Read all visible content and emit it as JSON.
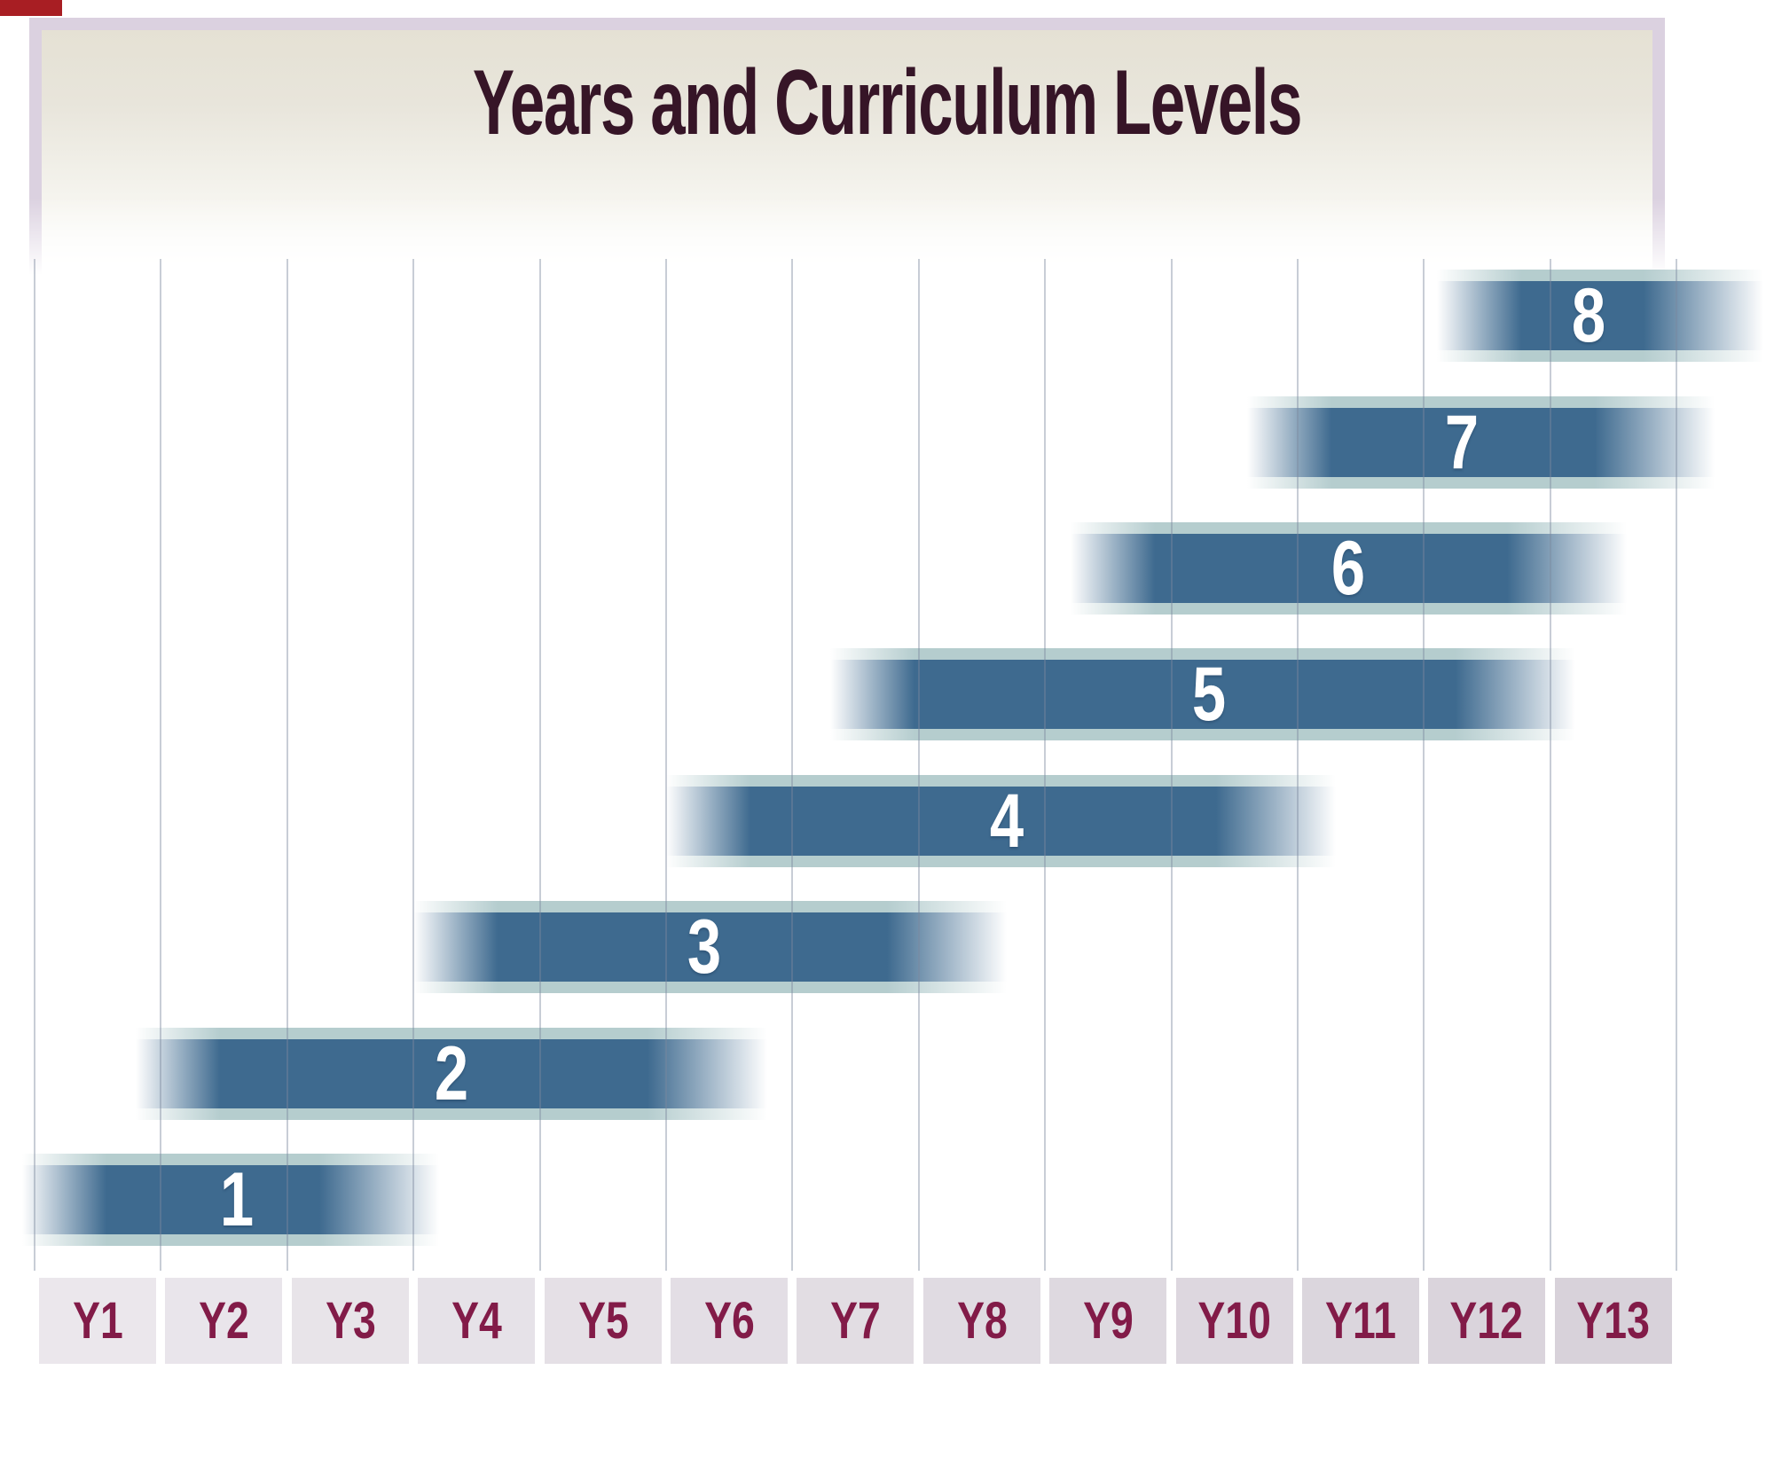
{
  "header": {
    "title": "Years and Curriculum Levels",
    "title_color": "#361527",
    "frame_color": "#dbd1e0",
    "gradient_top_color": "#e5e1d4"
  },
  "artifact": {
    "corner_mark_color": "#a81e23"
  },
  "chart_data": {
    "type": "gantt",
    "title": "Years and Curriculum Levels",
    "x_categories": [
      "Y1",
      "Y2",
      "Y3",
      "Y4",
      "Y5",
      "Y6",
      "Y7",
      "Y8",
      "Y9",
      "Y10",
      "Y11",
      "Y12",
      "Y13"
    ],
    "legend_position": "none",
    "grid": "vertical-only",
    "bar_style": "horizontal bars with soft faded ends",
    "levels": [
      {
        "level": "1",
        "year_start": 0.9,
        "year_end": 4.2,
        "label_year": 2.6
      },
      {
        "level": "2",
        "year_start": 1.8,
        "year_end": 6.8,
        "label_year": 4.3
      },
      {
        "level": "3",
        "year_start": 4.0,
        "year_end": 8.7,
        "label_year": 6.3
      },
      {
        "level": "4",
        "year_start": 6.0,
        "year_end": 11.3,
        "label_year": 8.7
      },
      {
        "level": "5",
        "year_start": 7.3,
        "year_end": 13.2,
        "label_year": 10.3
      },
      {
        "level": "6",
        "year_start": 9.2,
        "year_end": 13.6,
        "label_year": 11.4
      },
      {
        "level": "7",
        "year_start": 10.6,
        "year_end": 14.3,
        "label_year": 12.3
      },
      {
        "level": "8",
        "year_start": 12.1,
        "year_end": 14.7,
        "label_year": 13.3
      }
    ],
    "bar_color": "#3e6a8f",
    "bar_edge_band_color": "#a8c4c6",
    "gridline_color": "#8c98b0",
    "number_label_color": "#ffffff"
  },
  "x_axis": {
    "labels": [
      "Y1",
      "Y2",
      "Y3",
      "Y4",
      "Y5",
      "Y6",
      "Y7",
      "Y8",
      "Y9",
      "Y10",
      "Y11",
      "Y12",
      "Y13"
    ],
    "label_color": "#821b48",
    "box_color_left": "#ebe7ec",
    "box_color_right": "#d8d2da"
  }
}
